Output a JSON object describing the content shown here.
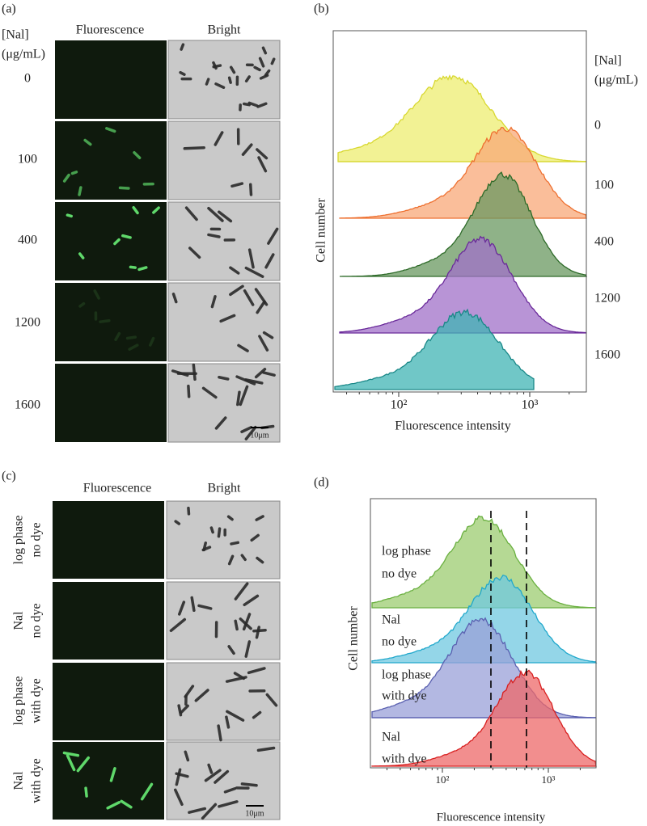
{
  "panel_a": {
    "label": "(a)",
    "column_headers": [
      "Fluorescence",
      "Bright"
    ],
    "row_header": [
      "[Nal]",
      "(μg/mL)"
    ],
    "rows": [
      "0",
      "100",
      "400",
      "1200",
      "1600"
    ],
    "scale_bar": "10μm"
  },
  "panel_b": {
    "label": "(b)",
    "y_label": "Cell number",
    "x_label": "Fluorescence intensity",
    "x_ticks": [
      "10²",
      "10³"
    ],
    "legend_header": [
      "[Nal]",
      "(μg/mL)"
    ],
    "legend": [
      "0",
      "100",
      "400",
      "1200",
      "1600"
    ]
  },
  "panel_c": {
    "label": "(c)",
    "column_headers": [
      "Fluorescence",
      "Bright"
    ],
    "rows": [
      [
        "log phase",
        "no dye"
      ],
      [
        "Nal",
        "no dye"
      ],
      [
        "log phase",
        "with dye"
      ],
      [
        "Nal",
        "with dye"
      ]
    ],
    "scale_bar": "10μm"
  },
  "panel_d": {
    "label": "(d)",
    "y_label": "Cell number",
    "x_label": "Fluorescence intensity",
    "x_ticks": [
      "10²",
      "10³"
    ],
    "rows": [
      [
        "log phase",
        "no dye"
      ],
      [
        "Nal",
        "no dye"
      ],
      [
        "log phase",
        "with dye"
      ],
      [
        "Nal",
        "with dye"
      ]
    ]
  }
}
